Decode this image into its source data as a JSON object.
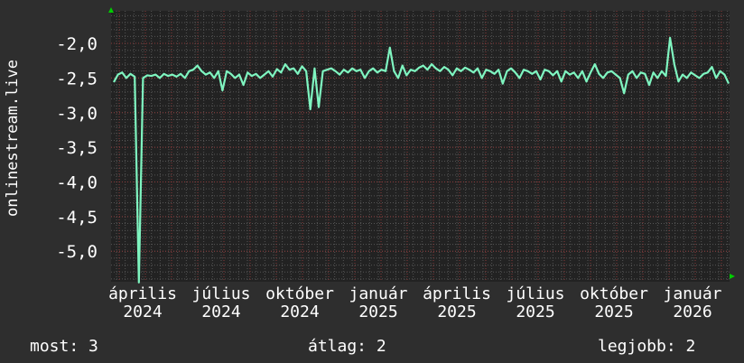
{
  "chart_data": {
    "type": "line",
    "title": "",
    "ylabel": "onlinestream.live",
    "xlabel": "",
    "ylim": [
      -5.44,
      -1.53
    ],
    "yticks": [
      "-2,0",
      "-2,5",
      "-3,0",
      "-3,5",
      "-4,0",
      "-4,5",
      "-5,0"
    ],
    "ytick_values": [
      -2.0,
      -2.5,
      -3.0,
      -3.5,
      -4.0,
      -4.5,
      -5.0
    ],
    "xticks": [
      "április 2024",
      "július 2024",
      "október 2024",
      "január 2025",
      "április 2025",
      "július 2025",
      "október 2025",
      "január 2026"
    ],
    "grid": true,
    "colors": {
      "line": "#7ff5c0",
      "background": "#2e2e2e",
      "plot": "#222222",
      "grid_minor": "#555555",
      "grid_major": "#8a3a3a",
      "arrow": "#00cc00"
    },
    "series": [
      {
        "values": [
          -2.56,
          -2.45,
          -2.42,
          -2.5,
          -2.44,
          -2.48,
          -5.45,
          -2.5,
          -2.46,
          -2.47,
          -2.45,
          -2.5,
          -2.44,
          -2.47,
          -2.45,
          -2.48,
          -2.44,
          -2.5,
          -2.4,
          -2.38,
          -2.32,
          -2.4,
          -2.45,
          -2.42,
          -2.5,
          -2.4,
          -2.68,
          -2.4,
          -2.44,
          -2.5,
          -2.45,
          -2.6,
          -2.42,
          -2.47,
          -2.44,
          -2.5,
          -2.45,
          -2.4,
          -2.48,
          -2.37,
          -2.42,
          -2.3,
          -2.38,
          -2.36,
          -2.44,
          -2.33,
          -2.4,
          -2.95,
          -2.36,
          -2.92,
          -2.4,
          -2.38,
          -2.36,
          -2.4,
          -2.45,
          -2.38,
          -2.42,
          -2.36,
          -2.4,
          -2.38,
          -2.5,
          -2.4,
          -2.36,
          -2.42,
          -2.38,
          -2.4,
          -2.06,
          -2.4,
          -2.5,
          -2.32,
          -2.46,
          -2.38,
          -2.4,
          -2.35,
          -2.32,
          -2.38,
          -2.3,
          -2.36,
          -2.4,
          -2.34,
          -2.38,
          -2.46,
          -2.36,
          -2.4,
          -2.35,
          -2.38,
          -2.42,
          -2.36,
          -2.5,
          -2.38,
          -2.4,
          -2.44,
          -2.38,
          -2.58,
          -2.4,
          -2.36,
          -2.42,
          -2.5,
          -2.38,
          -2.4,
          -2.44,
          -2.4,
          -2.52,
          -2.38,
          -2.4,
          -2.46,
          -2.4,
          -2.55,
          -2.4,
          -2.45,
          -2.42,
          -2.5,
          -2.4,
          -2.55,
          -2.42,
          -2.3,
          -2.44,
          -2.5,
          -2.42,
          -2.4,
          -2.45,
          -2.5,
          -2.72,
          -2.45,
          -2.4,
          -2.5,
          -2.42,
          -2.44,
          -2.6,
          -2.42,
          -2.5,
          -2.4,
          -2.47,
          -1.92,
          -2.3,
          -2.55,
          -2.45,
          -2.5,
          -2.42,
          -2.46,
          -2.5,
          -2.44,
          -2.42,
          -2.34,
          -2.5,
          -2.4,
          -2.45,
          -2.58
        ]
      }
    ]
  },
  "legend": {
    "current": "most: 3",
    "average": "átlag: 2",
    "best": "legjobb: 2"
  }
}
